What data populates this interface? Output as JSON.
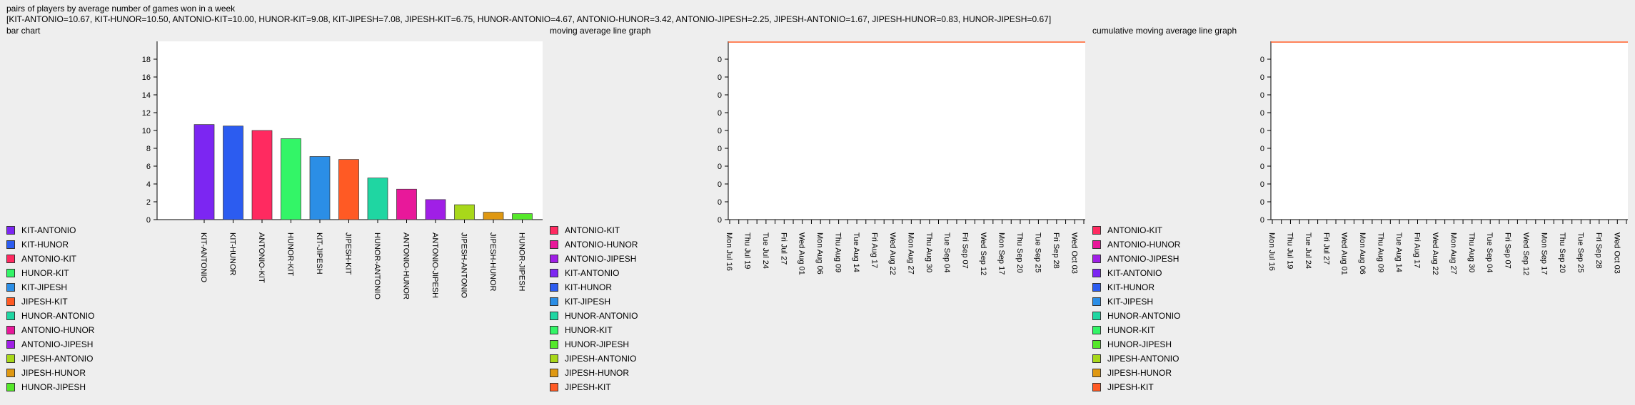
{
  "header": {
    "title": "pairs of players by average number of games won in a week",
    "summary": "[KIT-ANTONIO=10.67, KIT-HUNOR=10.50, ANTONIO-KIT=10.00, HUNOR-KIT=9.08, KIT-JIPESH=7.08, JIPESH-KIT=6.75, HUNOR-ANTONIO=4.67, ANTONIO-HUNOR=3.42, ANTONIO-JIPESH=2.25, JIPESH-ANTONIO=1.67, JIPESH-HUNOR=0.83, HUNOR-JIPESH=0.67]"
  },
  "colors": {
    "KIT-ANTONIO": "#7c26f2",
    "KIT-HUNOR": "#2c5cf0",
    "ANTONIO-KIT": "#ff2a60",
    "HUNOR-KIT": "#33f567",
    "KIT-JIPESH": "#2b8ee6",
    "JIPESH-KIT": "#ff5a24",
    "HUNOR-ANTONIO": "#1fd6a2",
    "ANTONIO-HUNOR": "#e8189a",
    "ANTONIO-JIPESH": "#a01fe6",
    "JIPESH-ANTONIO": "#a8d81a",
    "JIPESH-HUNOR": "#df9812",
    "HUNOR-JIPESH": "#55e82a"
  },
  "chart_data": [
    {
      "type": "bar",
      "title": "bar chart",
      "categories": [
        "KIT-ANTONIO",
        "KIT-HUNOR",
        "ANTONIO-KIT",
        "HUNOR-KIT",
        "KIT-JIPESH",
        "JIPESH-KIT",
        "HUNOR-ANTONIO",
        "ANTONIO-HUNOR",
        "ANTONIO-JIPESH",
        "JIPESH-ANTONIO",
        "JIPESH-HUNOR",
        "HUNOR-JIPESH"
      ],
      "values": [
        10.67,
        10.5,
        10.0,
        9.08,
        7.08,
        6.75,
        4.67,
        3.42,
        2.25,
        1.67,
        0.83,
        0.67
      ],
      "ylim": [
        0,
        20
      ],
      "yticks": [
        0,
        2,
        4,
        6,
        8,
        10,
        12,
        14,
        16,
        18
      ],
      "legend": [
        "KIT-ANTONIO",
        "KIT-HUNOR",
        "ANTONIO-KIT",
        "HUNOR-KIT",
        "KIT-JIPESH",
        "JIPESH-KIT",
        "HUNOR-ANTONIO",
        "ANTONIO-HUNOR",
        "ANTONIO-JIPESH",
        "JIPESH-ANTONIO",
        "JIPESH-HUNOR",
        "HUNOR-JIPESH"
      ],
      "legend_position": "bottom-left",
      "grid": false
    },
    {
      "type": "line",
      "title": "moving average line graph",
      "x_labels": [
        "Mon Jul 16",
        "Thu Jul 19",
        "Tue Jul 24",
        "Fri Jul 27",
        "Wed Aug 01",
        "Mon Aug 06",
        "Thu Aug 09",
        "Tue Aug 14",
        "Fri Aug 17",
        "Wed Aug 22",
        "Mon Aug 27",
        "Thu Aug 30",
        "Tue Sep 04",
        "Fri Sep 07",
        "Wed Sep 12",
        "Mon Sep 17",
        "Thu Sep 20",
        "Tue Sep 25",
        "Fri Sep 28",
        "Wed Oct 03"
      ],
      "x_minor_ticks": 40,
      "y_tick_labels": [
        "0",
        "0",
        "0",
        "0",
        "0",
        "0",
        "0",
        "0",
        "0",
        "0"
      ],
      "series_color": "#ff5a24",
      "legend": [
        "ANTONIO-KIT",
        "ANTONIO-HUNOR",
        "ANTONIO-JIPESH",
        "KIT-ANTONIO",
        "KIT-HUNOR",
        "KIT-JIPESH",
        "HUNOR-ANTONIO",
        "HUNOR-KIT",
        "HUNOR-JIPESH",
        "JIPESH-ANTONIO",
        "JIPESH-HUNOR",
        "JIPESH-KIT"
      ],
      "legend_position": "bottom-left",
      "grid": false
    },
    {
      "type": "line",
      "title": "cumulative moving average line graph",
      "x_labels": [
        "Mon Jul 16",
        "Thu Jul 19",
        "Tue Jul 24",
        "Fri Jul 27",
        "Wed Aug 01",
        "Mon Aug 06",
        "Thu Aug 09",
        "Tue Aug 14",
        "Fri Aug 17",
        "Wed Aug 22",
        "Mon Aug 27",
        "Thu Aug 30",
        "Tue Sep 04",
        "Fri Sep 07",
        "Wed Sep 12",
        "Mon Sep 17",
        "Thu Sep 20",
        "Tue Sep 25",
        "Fri Sep 28",
        "Wed Oct 03"
      ],
      "x_minor_ticks": 40,
      "y_tick_labels": [
        "0",
        "0",
        "0",
        "0",
        "0",
        "0",
        "0",
        "0",
        "0",
        "0"
      ],
      "series_color": "#ff5a24",
      "legend": [
        "ANTONIO-KIT",
        "ANTONIO-HUNOR",
        "ANTONIO-JIPESH",
        "KIT-ANTONIO",
        "KIT-HUNOR",
        "KIT-JIPESH",
        "HUNOR-ANTONIO",
        "HUNOR-KIT",
        "HUNOR-JIPESH",
        "JIPESH-ANTONIO",
        "JIPESH-HUNOR",
        "JIPESH-KIT"
      ],
      "legend_position": "bottom-left",
      "grid": false
    }
  ]
}
